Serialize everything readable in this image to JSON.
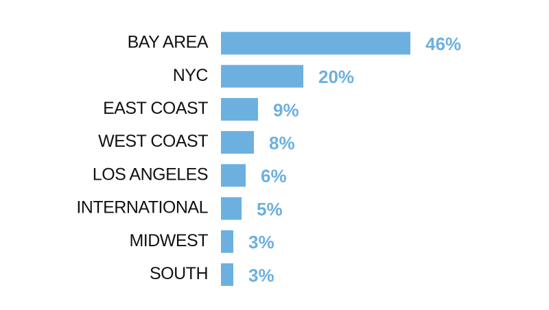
{
  "chart_data": {
    "type": "bar",
    "orientation": "horizontal",
    "categories": [
      "BAY AREA",
      "NYC",
      "EAST COAST",
      "WEST COAST",
      "LOS ANGELES",
      "INTERNATIONAL",
      "MIDWEST",
      "SOUTH"
    ],
    "values": [
      46,
      20,
      9,
      8,
      6,
      5,
      3,
      3
    ],
    "value_labels": [
      "46%",
      "20%",
      "9%",
      "8%",
      "6%",
      "5%",
      "3%",
      "3%"
    ],
    "color": "#6cb0e0"
  }
}
